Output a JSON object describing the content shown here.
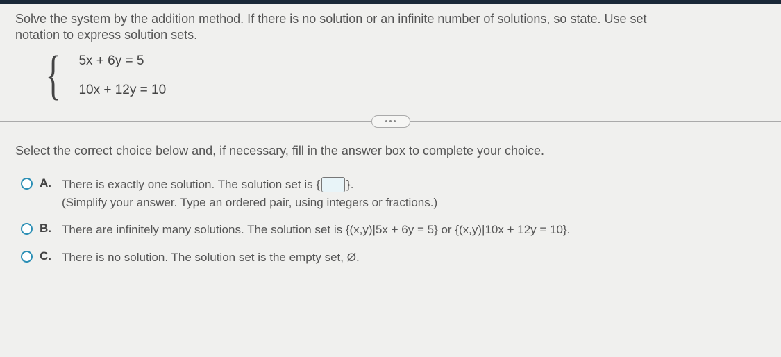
{
  "problem": {
    "line1": "Solve the system by the addition method. If there is no solution or an infinite number of solutions, so state. Use set",
    "line2": "notation to express solution sets.",
    "eq1": "5x + 6y = 5",
    "eq2": "10x + 12y = 10"
  },
  "instruction": "Select the correct choice below and, if necessary, fill in the answer box to complete your choice.",
  "choices": {
    "a": {
      "letter": "A.",
      "text1": "There is exactly one solution. The solution set is ",
      "text2": ".",
      "note": "(Simplify your answer. Type an ordered pair, using integers or fractions.)"
    },
    "b": {
      "letter": "B.",
      "text": "There are infinitely many solutions. The solution set is {(x,y)|5x + 6y = 5} or {(x,y)|10x + 12y = 10}."
    },
    "c": {
      "letter": "C.",
      "text": "There is no solution. The solution set is the empty set, Ø."
    }
  },
  "colors": {
    "topbar": "#1a2838",
    "radio_border": "#2b8fb5",
    "bg": "#f0f0ee"
  }
}
